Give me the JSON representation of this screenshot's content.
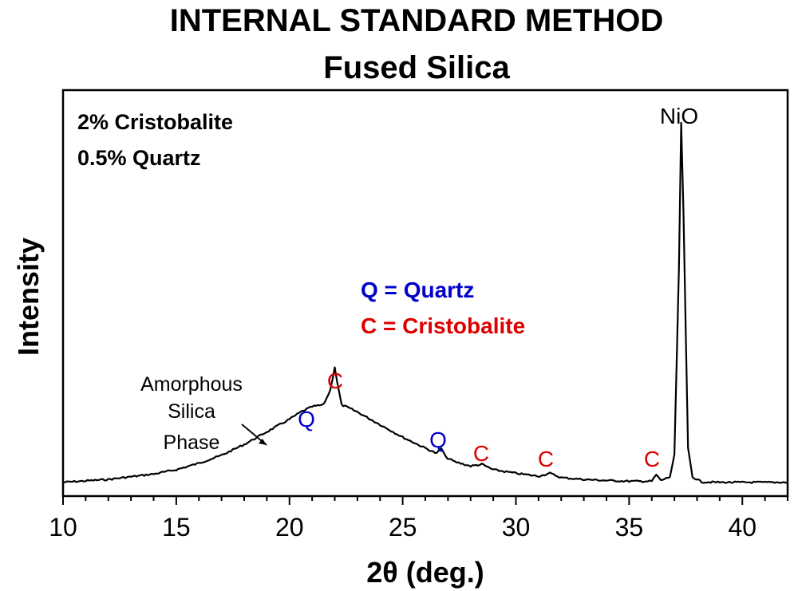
{
  "chart_data": {
    "type": "line",
    "title": "INTERNAL STANDARD METHOD",
    "subtitle": "Fused Silica",
    "xlabel": "2θ (deg.)",
    "ylabel": "Intensity",
    "xlim": [
      10,
      42
    ],
    "ylim": [
      0,
      1
    ],
    "x_ticks": [
      10,
      15,
      20,
      25,
      30,
      35,
      40
    ],
    "x_tick_labels": [
      "10",
      "15",
      "20",
      "25",
      "30",
      "35",
      "40"
    ],
    "grid": false,
    "composition": [
      "2% Cristobalite",
      "0.5% Quartz"
    ],
    "legend": [
      {
        "text": "Q = Quartz",
        "color": "#0000cc"
      },
      {
        "text": "C = Cristobalite",
        "color": "#dd0000"
      }
    ],
    "series": [
      {
        "color": "#000000",
        "x": [
          10,
          12,
          14,
          15,
          16,
          17,
          18,
          19,
          20,
          20.5,
          21,
          21.5,
          21.8,
          22.0,
          22.1,
          22.3,
          22.6,
          23,
          24,
          25,
          26,
          26.5,
          26.7,
          26.9,
          27.3,
          28,
          28.5,
          29,
          30,
          31,
          31.5,
          32,
          33,
          34,
          35,
          36,
          36.2,
          36.4,
          36.8,
          37.0,
          37.2,
          37.3,
          37.4,
          37.6,
          37.8,
          38.2,
          39,
          40,
          41,
          42
        ],
        "y": [
          0.005,
          0.013,
          0.028,
          0.04,
          0.058,
          0.08,
          0.11,
          0.145,
          0.18,
          0.2,
          0.215,
          0.22,
          0.26,
          0.325,
          0.285,
          0.22,
          0.212,
          0.2,
          0.165,
          0.13,
          0.1,
          0.085,
          0.1,
          0.075,
          0.062,
          0.05,
          0.055,
          0.04,
          0.03,
          0.022,
          0.03,
          0.018,
          0.013,
          0.01,
          0.008,
          0.008,
          0.026,
          0.01,
          0.02,
          0.08,
          0.6,
          1.0,
          0.75,
          0.1,
          0.02,
          0.006,
          0.005,
          0.005,
          0.005,
          0.005
        ]
      }
    ],
    "annotations": [
      {
        "text": "Amorphous",
        "color": "#000000"
      },
      {
        "text": "Silica",
        "color": "#000000"
      },
      {
        "text": "Phase",
        "color": "#000000"
      },
      {
        "text": "Q",
        "color": "#0000cc"
      },
      {
        "text": "C",
        "color": "#dd0000"
      },
      {
        "text": "Q",
        "color": "#0000cc"
      },
      {
        "text": "C",
        "color": "#dd0000"
      },
      {
        "text": "C",
        "color": "#dd0000"
      },
      {
        "text": "C",
        "color": "#dd0000"
      },
      {
        "text": "NiO",
        "color": "#000000"
      }
    ]
  }
}
